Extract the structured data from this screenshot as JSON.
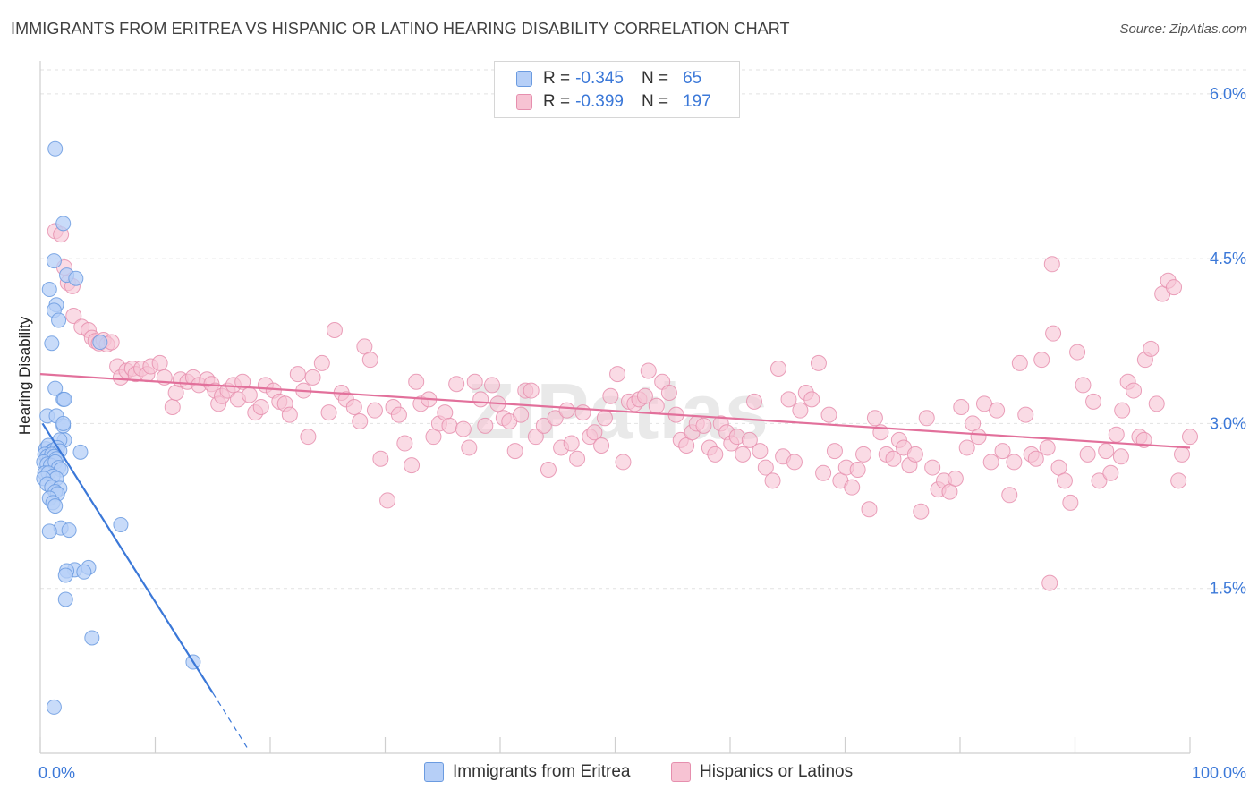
{
  "header": {
    "title": "IMMIGRANTS FROM ERITREA VS HISPANIC OR LATINO HEARING DISABILITY CORRELATION CHART",
    "source": "Source: ZipAtlas.com"
  },
  "legend": {
    "rows": [
      {
        "r_label": "R =",
        "r_value": "-0.345",
        "n_label": "N =",
        "n_value": "65",
        "color": "#6b9be0"
      },
      {
        "r_label": "R =",
        "r_value": "-0.399",
        "n_label": "N =",
        "n_value": "197",
        "color": "#e68fae"
      }
    ]
  },
  "bottom_legend": [
    "Immigrants from Eritrea",
    "Hispanics or Latinos"
  ],
  "watermark": "ZIPatlas",
  "chart_data": {
    "type": "scatter",
    "title": "IMMIGRANTS FROM ERITREA VS HISPANIC OR LATINO HEARING DISABILITY CORRELATION CHART",
    "xlabel": "",
    "ylabel": "Hearing Disability",
    "xlim": [
      0,
      100
    ],
    "ylim": [
      0,
      6.3
    ],
    "x_tick_labels": [
      "0.0%",
      "100.0%"
    ],
    "y_ticks": [
      1.5,
      3.0,
      4.5,
      6.0
    ],
    "y_tick_labels": [
      "1.5%",
      "3.0%",
      "4.5%",
      "6.0%"
    ],
    "grid": true,
    "legend_placement": "top-center",
    "series": [
      {
        "name": "Immigrants from Eritrea",
        "color": "#6b9be0",
        "fill": "#b6cff7",
        "r": -0.345,
        "n": 65,
        "trend": {
          "x1": 0.2,
          "y1": 3.0,
          "x2": 15.0,
          "y2": 0.55,
          "dash_to_x": 18.0,
          "dash_to_y": 0.05
        },
        "points": [
          [
            1.3,
            5.5
          ],
          [
            2.0,
            4.82
          ],
          [
            1.2,
            4.48
          ],
          [
            2.3,
            4.35
          ],
          [
            3.1,
            4.32
          ],
          [
            0.8,
            4.22
          ],
          [
            1.4,
            4.08
          ],
          [
            1.2,
            4.03
          ],
          [
            1.6,
            3.94
          ],
          [
            1.0,
            3.73
          ],
          [
            5.2,
            3.74
          ],
          [
            1.3,
            3.32
          ],
          [
            2.0,
            3.22
          ],
          [
            2.1,
            3.22
          ],
          [
            0.6,
            3.07
          ],
          [
            1.4,
            3.07
          ],
          [
            2.0,
            2.98
          ],
          [
            2.0,
            3.0
          ],
          [
            2.1,
            2.85
          ],
          [
            1.7,
            2.85
          ],
          [
            0.5,
            2.77
          ],
          [
            0.7,
            2.8
          ],
          [
            1.0,
            2.75
          ],
          [
            1.2,
            2.76
          ],
          [
            1.5,
            2.78
          ],
          [
            1.7,
            2.75
          ],
          [
            0.4,
            2.72
          ],
          [
            0.6,
            2.7
          ],
          [
            0.8,
            2.68
          ],
          [
            1.0,
            2.72
          ],
          [
            1.2,
            2.7
          ],
          [
            1.4,
            2.68
          ],
          [
            0.3,
            2.65
          ],
          [
            0.6,
            2.63
          ],
          [
            0.9,
            2.62
          ],
          [
            1.3,
            2.65
          ],
          [
            1.6,
            2.6
          ],
          [
            1.8,
            2.58
          ],
          [
            3.5,
            2.74
          ],
          [
            0.4,
            2.55
          ],
          [
            0.7,
            2.55
          ],
          [
            1.1,
            2.52
          ],
          [
            1.4,
            2.5
          ],
          [
            0.3,
            2.5
          ],
          [
            0.6,
            2.45
          ],
          [
            1.0,
            2.42
          ],
          [
            1.7,
            2.41
          ],
          [
            1.3,
            2.38
          ],
          [
            1.5,
            2.36
          ],
          [
            0.8,
            2.32
          ],
          [
            1.1,
            2.28
          ],
          [
            1.3,
            2.25
          ],
          [
            7.0,
            2.08
          ],
          [
            1.8,
            2.05
          ],
          [
            2.5,
            2.03
          ],
          [
            0.8,
            2.02
          ],
          [
            4.2,
            1.69
          ],
          [
            3.0,
            1.67
          ],
          [
            3.8,
            1.65
          ],
          [
            2.3,
            1.66
          ],
          [
            2.2,
            1.62
          ],
          [
            2.2,
            1.4
          ],
          [
            4.5,
            1.05
          ],
          [
            13.3,
            0.83
          ],
          [
            1.2,
            0.42
          ]
        ]
      },
      {
        "name": "Hispanics or Latinos",
        "color": "#e68fae",
        "fill": "#f7c3d3",
        "r": -0.399,
        "n": 197,
        "trend": {
          "x1": 0.0,
          "y1": 3.45,
          "x2": 100.0,
          "y2": 2.78
        },
        "points": [
          [
            1.3,
            4.75
          ],
          [
            1.8,
            4.72
          ],
          [
            2.1,
            4.42
          ],
          [
            2.4,
            4.28
          ],
          [
            2.8,
            4.25
          ],
          [
            2.9,
            3.98
          ],
          [
            3.6,
            3.88
          ],
          [
            4.2,
            3.85
          ],
          [
            4.5,
            3.78
          ],
          [
            4.8,
            3.75
          ],
          [
            5.1,
            3.73
          ],
          [
            5.5,
            3.76
          ],
          [
            5.8,
            3.72
          ],
          [
            6.2,
            3.74
          ],
          [
            6.7,
            3.52
          ],
          [
            7.0,
            3.42
          ],
          [
            7.5,
            3.48
          ],
          [
            8.0,
            3.5
          ],
          [
            8.3,
            3.45
          ],
          [
            8.8,
            3.5
          ],
          [
            9.3,
            3.45
          ],
          [
            9.6,
            3.52
          ],
          [
            10.4,
            3.55
          ],
          [
            10.8,
            3.42
          ],
          [
            11.5,
            3.15
          ],
          [
            11.8,
            3.28
          ],
          [
            12.2,
            3.4
          ],
          [
            12.8,
            3.38
          ],
          [
            13.3,
            3.42
          ],
          [
            13.8,
            3.35
          ],
          [
            14.5,
            3.4
          ],
          [
            14.9,
            3.36
          ],
          [
            15.2,
            3.3
          ],
          [
            15.5,
            3.18
          ],
          [
            15.8,
            3.25
          ],
          [
            16.3,
            3.3
          ],
          [
            16.8,
            3.35
          ],
          [
            17.2,
            3.22
          ],
          [
            17.6,
            3.38
          ],
          [
            18.2,
            3.26
          ],
          [
            18.7,
            3.1
          ],
          [
            19.2,
            3.15
          ],
          [
            19.6,
            3.35
          ],
          [
            20.3,
            3.3
          ],
          [
            20.8,
            3.2
          ],
          [
            21.3,
            3.18
          ],
          [
            21.7,
            3.08
          ],
          [
            22.4,
            3.45
          ],
          [
            22.9,
            3.3
          ],
          [
            23.3,
            2.88
          ],
          [
            23.7,
            3.42
          ],
          [
            24.5,
            3.55
          ],
          [
            25.1,
            3.1
          ],
          [
            25.6,
            3.85
          ],
          [
            26.2,
            3.28
          ],
          [
            26.6,
            3.22
          ],
          [
            27.3,
            3.15
          ],
          [
            27.8,
            3.02
          ],
          [
            28.2,
            3.7
          ],
          [
            28.7,
            3.58
          ],
          [
            29.1,
            3.12
          ],
          [
            29.6,
            2.68
          ],
          [
            30.2,
            2.3
          ],
          [
            30.7,
            3.15
          ],
          [
            31.2,
            3.08
          ],
          [
            31.7,
            2.82
          ],
          [
            32.3,
            2.62
          ],
          [
            32.7,
            3.38
          ],
          [
            33.1,
            3.18
          ],
          [
            33.8,
            3.22
          ],
          [
            34.2,
            2.88
          ],
          [
            34.7,
            3.0
          ],
          [
            35.2,
            3.1
          ],
          [
            35.6,
            2.98
          ],
          [
            36.2,
            3.36
          ],
          [
            36.8,
            2.95
          ],
          [
            37.3,
            2.78
          ],
          [
            37.8,
            3.38
          ],
          [
            38.3,
            3.22
          ],
          [
            38.7,
            2.98
          ],
          [
            39.3,
            3.35
          ],
          [
            39.8,
            3.18
          ],
          [
            40.3,
            3.05
          ],
          [
            40.8,
            3.02
          ],
          [
            41.3,
            2.75
          ],
          [
            41.8,
            3.08
          ],
          [
            42.2,
            3.3
          ],
          [
            42.7,
            3.3
          ],
          [
            43.1,
            2.88
          ],
          [
            43.8,
            2.98
          ],
          [
            44.2,
            2.58
          ],
          [
            44.8,
            3.05
          ],
          [
            45.3,
            2.78
          ],
          [
            45.8,
            3.12
          ],
          [
            46.2,
            2.82
          ],
          [
            46.7,
            2.68
          ],
          [
            47.2,
            3.1
          ],
          [
            47.8,
            2.88
          ],
          [
            48.2,
            2.92
          ],
          [
            48.8,
            2.8
          ],
          [
            49.1,
            3.05
          ],
          [
            49.6,
            3.25
          ],
          [
            50.2,
            3.45
          ],
          [
            50.7,
            2.65
          ],
          [
            51.2,
            3.2
          ],
          [
            51.7,
            3.18
          ],
          [
            52.1,
            3.22
          ],
          [
            52.6,
            3.25
          ],
          [
            52.9,
            3.48
          ],
          [
            53.6,
            3.16
          ],
          [
            54.1,
            3.38
          ],
          [
            54.7,
            3.28
          ],
          [
            55.3,
            3.08
          ],
          [
            55.7,
            2.85
          ],
          [
            56.2,
            2.8
          ],
          [
            56.7,
            2.92
          ],
          [
            57.1,
            3.0
          ],
          [
            57.7,
            2.98
          ],
          [
            58.2,
            2.78
          ],
          [
            58.7,
            2.72
          ],
          [
            59.2,
            3.0
          ],
          [
            59.7,
            2.92
          ],
          [
            60.1,
            2.82
          ],
          [
            60.6,
            2.88
          ],
          [
            61.1,
            2.72
          ],
          [
            61.7,
            2.85
          ],
          [
            62.1,
            3.2
          ],
          [
            62.6,
            2.75
          ],
          [
            63.1,
            2.6
          ],
          [
            63.7,
            2.48
          ],
          [
            64.2,
            3.5
          ],
          [
            64.6,
            2.7
          ],
          [
            65.1,
            3.22
          ],
          [
            65.6,
            2.65
          ],
          [
            66.1,
            3.12
          ],
          [
            66.6,
            3.28
          ],
          [
            67.1,
            3.22
          ],
          [
            67.7,
            3.55
          ],
          [
            68.1,
            2.55
          ],
          [
            68.6,
            3.08
          ],
          [
            69.1,
            2.75
          ],
          [
            69.6,
            2.48
          ],
          [
            70.1,
            2.6
          ],
          [
            70.6,
            2.42
          ],
          [
            71.1,
            2.58
          ],
          [
            71.6,
            2.72
          ],
          [
            72.1,
            2.22
          ],
          [
            72.6,
            3.05
          ],
          [
            73.1,
            2.92
          ],
          [
            73.6,
            2.72
          ],
          [
            74.2,
            2.68
          ],
          [
            74.7,
            2.85
          ],
          [
            75.1,
            2.78
          ],
          [
            75.6,
            2.62
          ],
          [
            76.1,
            2.72
          ],
          [
            76.6,
            2.2
          ],
          [
            77.1,
            3.05
          ],
          [
            77.6,
            2.6
          ],
          [
            78.1,
            2.4
          ],
          [
            78.6,
            2.48
          ],
          [
            79.1,
            2.38
          ],
          [
            79.6,
            2.5
          ],
          [
            80.1,
            3.15
          ],
          [
            80.6,
            2.78
          ],
          [
            81.1,
            3.0
          ],
          [
            81.6,
            2.88
          ],
          [
            82.1,
            3.18
          ],
          [
            82.7,
            2.65
          ],
          [
            83.2,
            3.12
          ],
          [
            83.7,
            2.75
          ],
          [
            84.3,
            2.35
          ],
          [
            84.7,
            2.65
          ],
          [
            85.2,
            3.55
          ],
          [
            85.7,
            3.08
          ],
          [
            86.2,
            2.72
          ],
          [
            86.6,
            2.68
          ],
          [
            87.1,
            3.58
          ],
          [
            87.6,
            2.78
          ],
          [
            88.1,
            3.82
          ],
          [
            88.6,
            2.6
          ],
          [
            89.1,
            2.48
          ],
          [
            89.6,
            2.28
          ],
          [
            90.2,
            3.65
          ],
          [
            90.7,
            3.35
          ],
          [
            91.1,
            2.72
          ],
          [
            91.6,
            3.2
          ],
          [
            92.1,
            2.48
          ],
          [
            92.7,
            2.75
          ],
          [
            93.1,
            2.55
          ],
          [
            93.6,
            2.9
          ],
          [
            94.1,
            3.12
          ],
          [
            94.6,
            3.38
          ],
          [
            95.1,
            3.3
          ],
          [
            95.6,
            2.88
          ],
          [
            96.1,
            3.58
          ],
          [
            96.6,
            3.68
          ],
          [
            97.1,
            3.18
          ],
          [
            97.6,
            4.18
          ],
          [
            98.1,
            4.3
          ],
          [
            98.6,
            4.24
          ],
          [
            99.0,
            2.48
          ],
          [
            99.3,
            2.72
          ],
          [
            88.0,
            4.45
          ],
          [
            87.8,
            1.55
          ],
          [
            96.0,
            2.85
          ],
          [
            94.0,
            2.7
          ],
          [
            100.0,
            2.88
          ]
        ]
      }
    ]
  }
}
